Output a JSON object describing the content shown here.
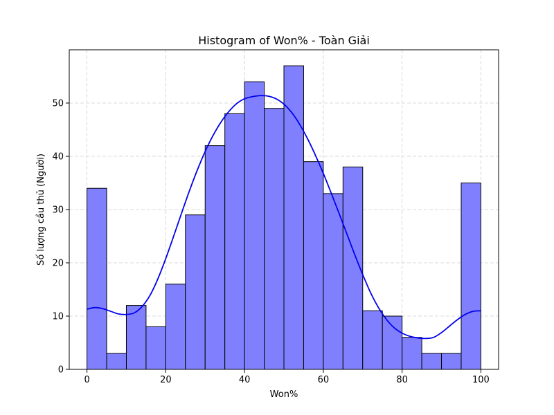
{
  "chart_data": {
    "type": "bar",
    "title": "Histogram of Won% - Toàn Giải",
    "xlabel": "Won%",
    "ylabel": "Số lượng cầu thủ (Người)",
    "xlim": [
      -4.5,
      104.5
    ],
    "ylim": [
      0,
      60
    ],
    "x_ticks": [
      0,
      20,
      40,
      60,
      80,
      100
    ],
    "y_ticks": [
      0,
      10,
      20,
      30,
      40,
      50
    ],
    "grid": true,
    "bin_width": 5,
    "bins": [
      {
        "start": 0,
        "end": 5,
        "count": 34
      },
      {
        "start": 5,
        "end": 10,
        "count": 3
      },
      {
        "start": 10,
        "end": 15,
        "count": 12
      },
      {
        "start": 15,
        "end": 20,
        "count": 8
      },
      {
        "start": 20,
        "end": 25,
        "count": 16
      },
      {
        "start": 25,
        "end": 30,
        "count": 29
      },
      {
        "start": 30,
        "end": 35,
        "count": 42
      },
      {
        "start": 35,
        "end": 40,
        "count": 48
      },
      {
        "start": 40,
        "end": 45,
        "count": 54
      },
      {
        "start": 45,
        "end": 50,
        "count": 49
      },
      {
        "start": 50,
        "end": 55,
        "count": 57
      },
      {
        "start": 55,
        "end": 60,
        "count": 39
      },
      {
        "start": 60,
        "end": 65,
        "count": 33
      },
      {
        "start": 65,
        "end": 70,
        "count": 38
      },
      {
        "start": 70,
        "end": 75,
        "count": 11
      },
      {
        "start": 75,
        "end": 80,
        "count": 10
      },
      {
        "start": 80,
        "end": 85,
        "count": 6
      },
      {
        "start": 85,
        "end": 90,
        "count": 3
      },
      {
        "start": 90,
        "end": 95,
        "count": 3
      },
      {
        "start": 95,
        "end": 100,
        "count": 35
      }
    ],
    "kde": [
      [
        0,
        11.3
      ],
      [
        2,
        11.6
      ],
      [
        4,
        11.4
      ],
      [
        6,
        10.9
      ],
      [
        8,
        10.4
      ],
      [
        10,
        10.3
      ],
      [
        12,
        10.6
      ],
      [
        14,
        11.8
      ],
      [
        16,
        13.9
      ],
      [
        18,
        17.0
      ],
      [
        20,
        20.8
      ],
      [
        22,
        25.0
      ],
      [
        24,
        29.3
      ],
      [
        26,
        33.5
      ],
      [
        28,
        37.4
      ],
      [
        30,
        40.9
      ],
      [
        32,
        43.9
      ],
      [
        34,
        46.4
      ],
      [
        36,
        48.4
      ],
      [
        38,
        49.9
      ],
      [
        40,
        50.8
      ],
      [
        42,
        51.2
      ],
      [
        44,
        51.4
      ],
      [
        46,
        51.3
      ],
      [
        48,
        50.8
      ],
      [
        50,
        49.8
      ],
      [
        52,
        48.2
      ],
      [
        54,
        46.0
      ],
      [
        56,
        43.3
      ],
      [
        58,
        40.2
      ],
      [
        60,
        36.8
      ],
      [
        62,
        33.1
      ],
      [
        64,
        29.3
      ],
      [
        66,
        25.4
      ],
      [
        68,
        21.5
      ],
      [
        70,
        17.8
      ],
      [
        72,
        14.4
      ],
      [
        74,
        11.6
      ],
      [
        76,
        9.4
      ],
      [
        78,
        7.8
      ],
      [
        80,
        6.8
      ],
      [
        82,
        6.2
      ],
      [
        84,
        5.9
      ],
      [
        86,
        5.8
      ],
      [
        88,
        6.0
      ],
      [
        90,
        6.9
      ],
      [
        92,
        8.1
      ],
      [
        94,
        9.3
      ],
      [
        96,
        10.3
      ],
      [
        98,
        10.9
      ],
      [
        100,
        11.0
      ]
    ],
    "colors": {
      "bar_fill": "#8080ff",
      "bar_edge": "#000000",
      "kde_line": "#0000ee",
      "grid": "#cccccc"
    }
  }
}
